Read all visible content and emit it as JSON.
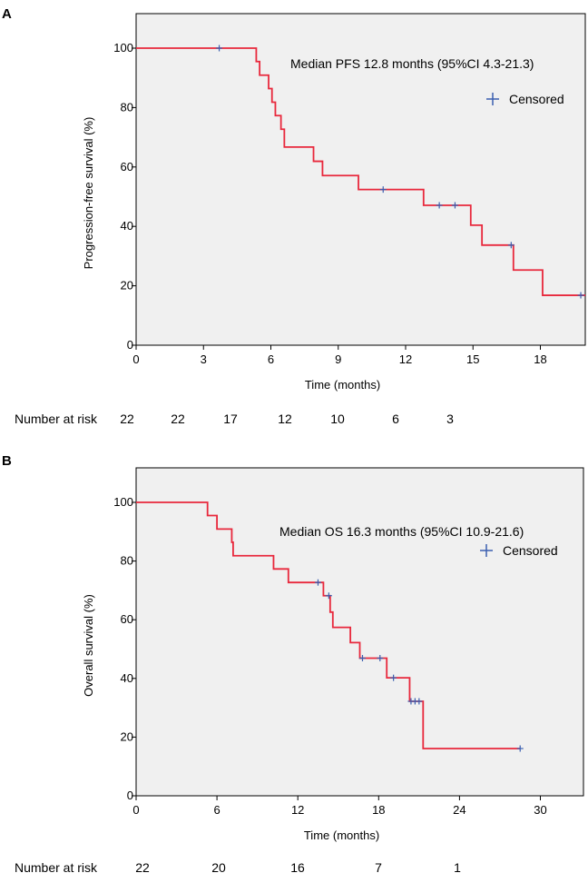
{
  "chart_data": [
    {
      "panel": "A",
      "type": "line",
      "subtype": "kaplan-meier",
      "xlabel": "Time (months)",
      "ylabel": "Progression-free survival (%)",
      "xlim": [
        0,
        20
      ],
      "ylim": [
        0,
        110
      ],
      "xticks": [
        0,
        3,
        6,
        9,
        12,
        15,
        18
      ],
      "yticks": [
        0,
        20,
        40,
        60,
        80,
        100
      ],
      "annotation": "Median PFS 12.8 months (95%CI 4.3-21.3)",
      "legend": "Censored",
      "curve_color": "#e8283c",
      "censor_color": "#3a5fb0",
      "steps": [
        [
          0,
          100
        ],
        [
          5.35,
          95.5
        ],
        [
          5.5,
          90.9
        ],
        [
          5.9,
          86.4
        ],
        [
          6.05,
          81.8
        ],
        [
          6.2,
          77.3
        ],
        [
          6.45,
          72.7
        ],
        [
          6.6,
          66.7
        ],
        [
          7.9,
          61.9
        ],
        [
          8.3,
          57.1
        ],
        [
          9.9,
          52.4
        ],
        [
          12.8,
          47.1
        ],
        [
          14.9,
          40.4
        ],
        [
          15.4,
          33.7
        ],
        [
          16.8,
          25.3
        ],
        [
          18.1,
          16.8
        ],
        [
          20,
          16.8
        ]
      ],
      "censored": [
        [
          3.7,
          100
        ],
        [
          11.0,
          52.4
        ],
        [
          13.5,
          47.1
        ],
        [
          14.2,
          47.1
        ],
        [
          16.7,
          33.7
        ],
        [
          19.8,
          16.8
        ]
      ],
      "risk_label": "Number at risk",
      "risk_values": [
        "22",
        "22",
        "17",
        "12",
        "10",
        "6",
        "3"
      ]
    },
    {
      "panel": "B",
      "type": "line",
      "subtype": "kaplan-meier",
      "xlabel": "Time (months)",
      "ylabel": "Overall survival (%)",
      "xlim": [
        0,
        33
      ],
      "ylim": [
        0,
        110
      ],
      "xticks": [
        0,
        6,
        12,
        18,
        24,
        30
      ],
      "yticks": [
        0,
        20,
        40,
        60,
        80,
        100
      ],
      "annotation": "Median OS 16.3 months (95%CI 10.9-21.6)",
      "legend": "Censored",
      "curve_color": "#e8283c",
      "censor_color": "#3a5fb0",
      "steps": [
        [
          0,
          100
        ],
        [
          5.3,
          95.5
        ],
        [
          6.0,
          90.9
        ],
        [
          7.1,
          86.4
        ],
        [
          7.2,
          81.8
        ],
        [
          10.2,
          77.3
        ],
        [
          11.3,
          72.7
        ],
        [
          13.9,
          68.2
        ],
        [
          14.4,
          62.6
        ],
        [
          14.6,
          57.4
        ],
        [
          15.9,
          52.2
        ],
        [
          16.6,
          46.9
        ],
        [
          18.6,
          40.2
        ],
        [
          20.3,
          32.2
        ],
        [
          21.3,
          16.1
        ],
        [
          28.5,
          16.1
        ]
      ],
      "censored": [
        [
          13.5,
          72.7
        ],
        [
          14.3,
          68.2
        ],
        [
          16.8,
          46.9
        ],
        [
          18.1,
          46.9
        ],
        [
          19.1,
          40.2
        ],
        [
          20.4,
          32.2
        ],
        [
          20.7,
          32.2
        ],
        [
          21.0,
          32.2
        ],
        [
          28.5,
          16.1
        ]
      ],
      "risk_label": "Number at risk",
      "risk_values": [
        "22",
        "20",
        "16",
        "7",
        "1"
      ]
    }
  ]
}
